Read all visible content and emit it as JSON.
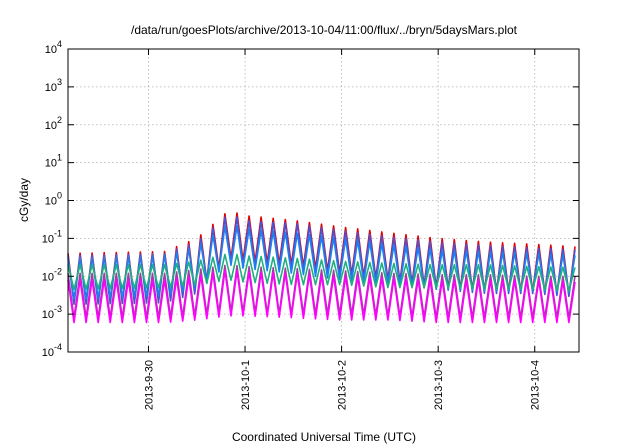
{
  "chart_data": {
    "type": "line",
    "title": "/data/run/goesPlots/archive/2013-10-04/11:00/flux/../bryn/5daysMars.plot",
    "xlabel": "Coordinated Universal Time (UTC)",
    "ylabel": "cGy/day",
    "yscale": "log",
    "ylim": [
      0.0001,
      10000
    ],
    "xlim": [
      "2013-09-29 04:00",
      "2013-10-04 11:00"
    ],
    "grid": true,
    "legend": "none",
    "y_ticks": [
      {
        "base": "10",
        "exp": "-4",
        "value": 0.0001
      },
      {
        "base": "10",
        "exp": "-3",
        "value": 0.001
      },
      {
        "base": "10",
        "exp": "-2",
        "value": 0.01
      },
      {
        "base": "10",
        "exp": "-1",
        "value": 0.1
      },
      {
        "base": "10",
        "exp": "0",
        "value": 1
      },
      {
        "base": "10",
        "exp": "1",
        "value": 10
      },
      {
        "base": "10",
        "exp": "2",
        "value": 100
      },
      {
        "base": "10",
        "exp": "3",
        "value": 1000
      },
      {
        "base": "10",
        "exp": "4",
        "value": 10000
      }
    ],
    "x_ticks": [
      {
        "label": "2013-9-30",
        "value": "2013-09-30 00:00"
      },
      {
        "label": "2013-10-1",
        "value": "2013-10-01 00:00"
      },
      {
        "label": "2013-10-2",
        "value": "2013-10-02 00:00"
      },
      {
        "label": "2013-10-3",
        "value": "2013-10-03 00:00"
      },
      {
        "label": "2013-10-4",
        "value": "2013-10-04 00:00"
      }
    ],
    "sawtooth_period_hours": 3,
    "envelope_times": [
      "2013-09-29 04:00",
      "2013-09-30 04:00",
      "2013-09-30 12:00",
      "2013-09-30 20:00",
      "2013-10-01 00:00",
      "2013-10-01 12:00",
      "2013-10-02 00:00",
      "2013-10-02 12:00",
      "2013-10-03 00:00",
      "2013-10-03 12:00",
      "2013-10-04 00:00",
      "2013-10-04 11:00"
    ],
    "series": [
      {
        "color": "#e00000",
        "peak": [
          0.04,
          0.045,
          0.1,
          0.55,
          0.4,
          0.3,
          0.2,
          0.14,
          0.1,
          0.08,
          0.07,
          0.06
        ],
        "trough": [
          0.002,
          0.0025,
          0.004,
          0.03,
          0.025,
          0.02,
          0.012,
          0.008,
          0.005,
          0.004,
          0.004,
          0.003
        ]
      },
      {
        "color": "#5050d0",
        "peak": [
          0.035,
          0.04,
          0.08,
          0.45,
          0.3,
          0.25,
          0.16,
          0.11,
          0.08,
          0.065,
          0.055,
          0.05
        ],
        "trough": [
          0.0018,
          0.002,
          0.0035,
          0.025,
          0.02,
          0.016,
          0.01,
          0.007,
          0.0045,
          0.0035,
          0.0035,
          0.0028
        ]
      },
      {
        "color": "#1e80f0",
        "peak": [
          0.03,
          0.035,
          0.06,
          0.25,
          0.18,
          0.14,
          0.1,
          0.07,
          0.05,
          0.045,
          0.04,
          0.035
        ],
        "trough": [
          0.0025,
          0.003,
          0.005,
          0.02,
          0.016,
          0.012,
          0.008,
          0.006,
          0.0045,
          0.004,
          0.004,
          0.0035
        ]
      },
      {
        "color": "#20b080",
        "peak": [
          0.02,
          0.02,
          0.025,
          0.04,
          0.035,
          0.03,
          0.025,
          0.022,
          0.02,
          0.02,
          0.018,
          0.017
        ],
        "trough": [
          0.0045,
          0.005,
          0.006,
          0.008,
          0.007,
          0.006,
          0.006,
          0.005,
          0.005,
          0.0045,
          0.0045,
          0.004
        ]
      },
      {
        "color": "#a040a0",
        "peak": [
          0.012,
          0.012,
          0.015,
          0.02,
          0.018,
          0.016,
          0.014,
          0.012,
          0.011,
          0.011,
          0.01,
          0.01
        ],
        "trough": [
          0.0008,
          0.0008,
          0.0009,
          0.0012,
          0.0011,
          0.001,
          0.001,
          0.0009,
          0.0008,
          0.0008,
          0.0008,
          0.0008
        ]
      },
      {
        "color": "#ff00ff",
        "peak": [
          0.008,
          0.008,
          0.01,
          0.015,
          0.013,
          0.012,
          0.01,
          0.009,
          0.008,
          0.008,
          0.008,
          0.007
        ],
        "trough": [
          0.0006,
          0.0006,
          0.0007,
          0.0009,
          0.0009,
          0.0008,
          0.0007,
          0.0007,
          0.0006,
          0.0006,
          0.0006,
          0.0006
        ]
      }
    ]
  }
}
